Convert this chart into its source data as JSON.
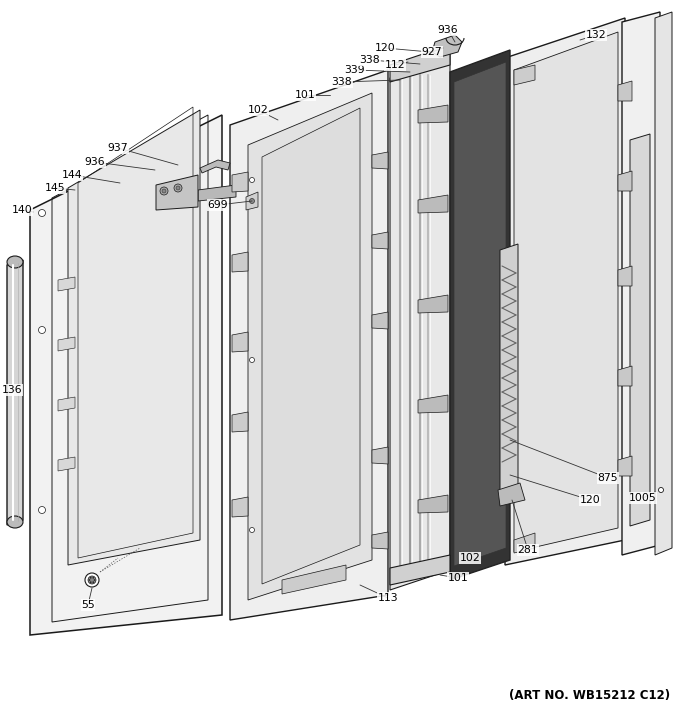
{
  "art_no": "(ART NO. WB15212 C12)",
  "bg_color": "#ffffff",
  "lc": "#1a1a1a",
  "fig_width": 6.8,
  "fig_height": 7.24,
  "label_fs": 7.8
}
